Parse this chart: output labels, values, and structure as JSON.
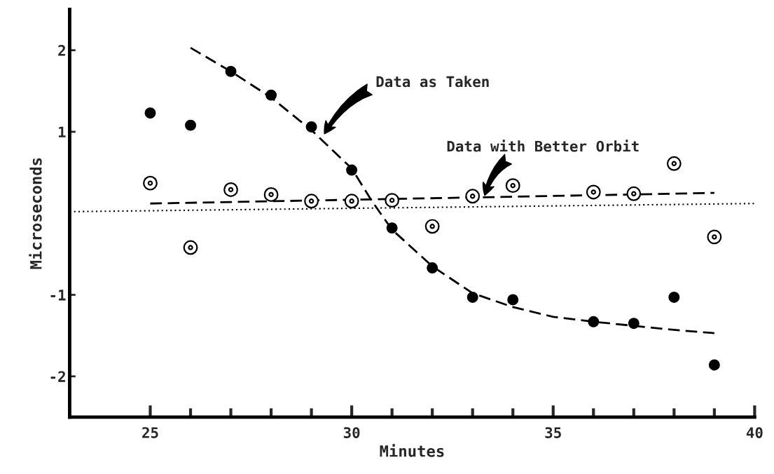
{
  "chart_data": {
    "type": "scatter",
    "xlabel": "Minutes",
    "ylabel": "Microseconds",
    "xlim": [
      23,
      40
    ],
    "ylim": [
      -2.5,
      2.5
    ],
    "xticks": [
      25,
      {
        "value": 26,
        "label": null
      },
      {
        "value": 27,
        "label": null
      },
      {
        "value": 28,
        "label": null
      },
      {
        "value": 29,
        "label": null
      },
      30,
      {
        "value": 31,
        "label": null
      },
      {
        "value": 32,
        "label": null
      },
      {
        "value": 33,
        "label": null
      },
      {
        "value": 34,
        "label": null
      },
      35,
      {
        "value": 36,
        "label": null
      },
      {
        "value": 37,
        "label": null
      },
      {
        "value": 38,
        "label": null
      },
      {
        "value": 39,
        "label": null
      },
      40
    ],
    "yticks": [
      2,
      1,
      -1,
      -2
    ],
    "grid": false,
    "legend": false,
    "series": [
      {
        "color": "#000000",
        "marker": "circle",
        "x": [
          25,
          26,
          27,
          28,
          29,
          30,
          31,
          32,
          33,
          34,
          36,
          37,
          38,
          39
        ],
        "values": [
          1.23,
          1.08,
          1.74,
          1.45,
          1.06,
          0.53,
          -0.18,
          -0.67,
          -1.03,
          -1.06,
          -1.33,
          -1.35,
          -1.03,
          -1.86
        ]
      },
      {
        "color": "#000000",
        "marker": "circled dot",
        "x": [
          25,
          26,
          27,
          28,
          29,
          30,
          31,
          32,
          33,
          34,
          36,
          37,
          38,
          39
        ],
        "values": [
          0.37,
          -0.42,
          0.29,
          0.23,
          0.15,
          0.15,
          0.16,
          -0.16,
          0.21,
          0.34,
          0.26,
          0.24,
          0.61,
          -0.29
        ]
      },
      {
        "type": "line",
        "color": "#000000",
        "line_style": "dashed",
        "marker": "none",
        "x": [
          26,
          27,
          28,
          29,
          30,
          30.5,
          31,
          32,
          33,
          34,
          35,
          36,
          37,
          38,
          39
        ],
        "values": [
          2.03,
          1.74,
          1.42,
          1.02,
          0.55,
          0.15,
          -0.2,
          -0.65,
          -0.98,
          -1.15,
          -1.27,
          -1.33,
          -1.38,
          -1.43,
          -1.47
        ]
      },
      {
        "type": "line",
        "color": "#000000",
        "line_style": "dashed",
        "marker": "none",
        "x": [
          25,
          39
        ],
        "values": [
          0.12,
          0.25
        ]
      },
      {
        "type": "line",
        "color": "#000000",
        "line_style": "dotted",
        "marker": "none",
        "x": [
          23,
          40
        ],
        "values": [
          0.02,
          0.12
        ]
      }
    ],
    "annotations": [
      "Data as Taken",
      {
        "text": "Data with Better Orbit",
        "x": 33.3,
        "y": 0.22
      }
    ]
  }
}
